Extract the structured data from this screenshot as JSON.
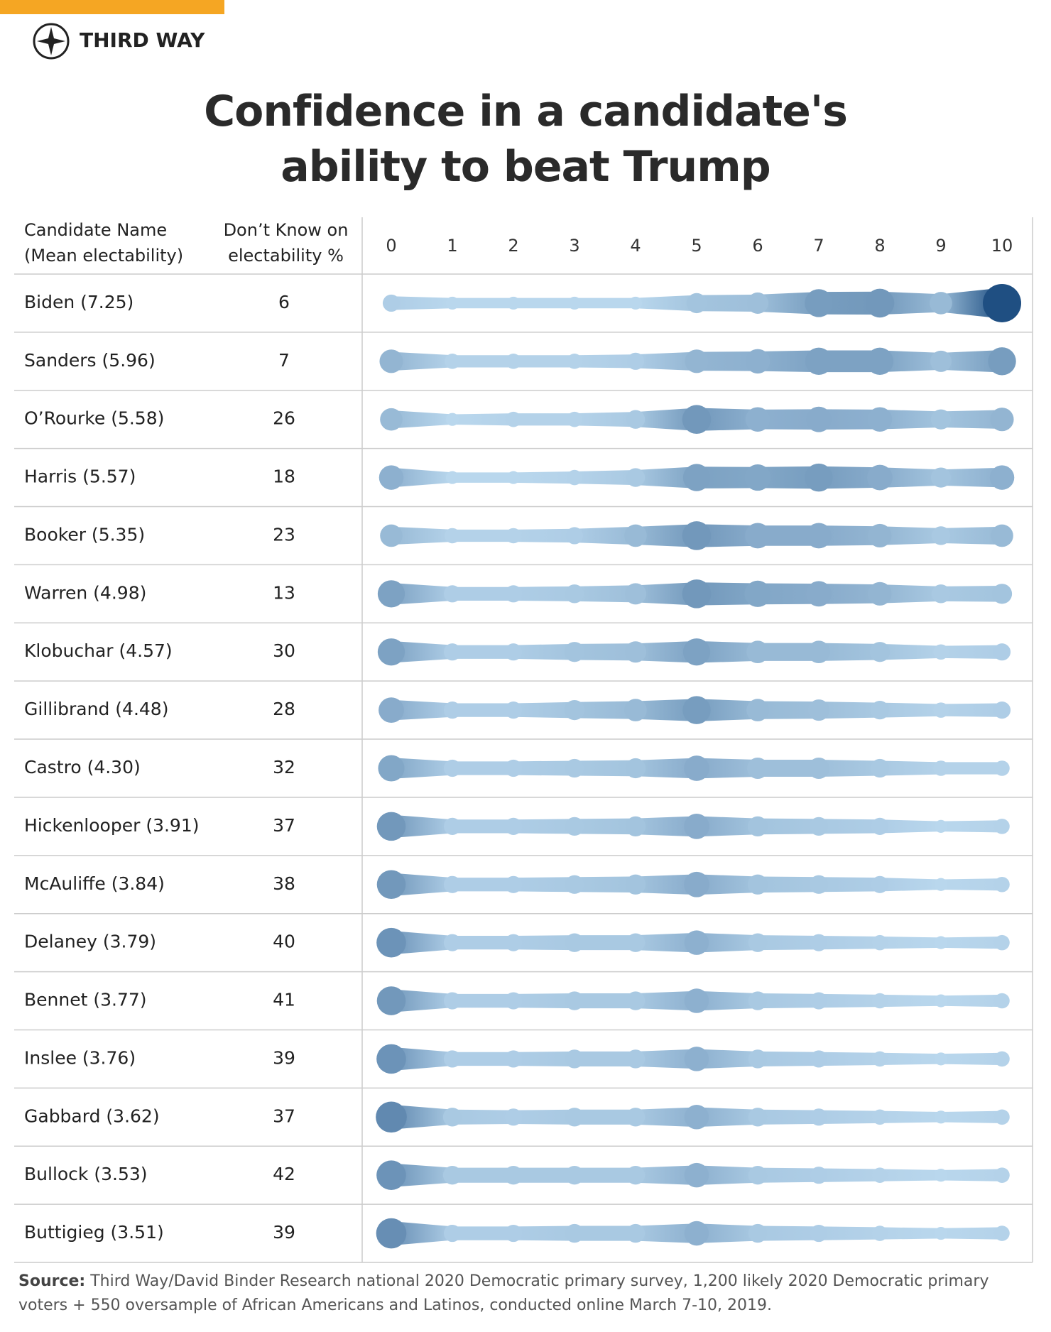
{
  "brand": "THIRD WAY",
  "chart_data": {
    "type": "ribbon",
    "title": "Confidence in a candidate's ability to beat Trump",
    "column_headers": [
      "Candidate Name (Mean electability)",
      "Don’t Know on electability %"
    ],
    "categories": [
      "Biden (7.25)",
      "Sanders (5.96)",
      "O’Rourke (5.58)",
      "Harris (5.57)",
      "Booker (5.35)",
      "Warren (4.98)",
      "Klobuchar (4.57)",
      "Gillibrand (4.48)",
      "Castro (4.30)",
      "Hickenlooper (3.91)",
      "McAuliffe (3.84)",
      "Delaney (3.79)",
      "Bennet (3.77)",
      "Inslee (3.76)",
      "Gabbard (3.62)",
      "Bullock (3.53)",
      "Buttigieg (3.51)"
    ],
    "dont_know": [
      6,
      7,
      26,
      18,
      23,
      13,
      30,
      28,
      32,
      37,
      38,
      40,
      41,
      39,
      37,
      42,
      39
    ],
    "xlim": [
      0,
      10
    ],
    "xticks": [
      0,
      1,
      2,
      3,
      4,
      5,
      6,
      7,
      8,
      9,
      10
    ],
    "distribution": [
      [
        3,
        1,
        1,
        1,
        1,
        5,
        6,
        13,
        14,
        7,
        29
      ],
      [
        8,
        2,
        2,
        2,
        3,
        8,
        9,
        12,
        12,
        6,
        13
      ],
      [
        7,
        1,
        2,
        2,
        4,
        14,
        9,
        10,
        9,
        5,
        8
      ],
      [
        9,
        1,
        1,
        2,
        4,
        12,
        11,
        13,
        10,
        5,
        9
      ],
      [
        7,
        2,
        2,
        3,
        7,
        14,
        10,
        10,
        8,
        4,
        7
      ],
      [
        12,
        3,
        3,
        4,
        6,
        14,
        11,
        10,
        8,
        4,
        5
      ],
      [
        12,
        3,
        3,
        5,
        6,
        12,
        7,
        7,
        5,
        2,
        3
      ],
      [
        10,
        3,
        3,
        5,
        7,
        13,
        7,
        6,
        4,
        2,
        3
      ],
      [
        11,
        3,
        3,
        4,
        5,
        10,
        6,
        6,
        4,
        2,
        2
      ],
      [
        14,
        3,
        3,
        4,
        5,
        10,
        5,
        4,
        3,
        1,
        2
      ],
      [
        14,
        3,
        3,
        4,
        5,
        10,
        5,
        4,
        3,
        1,
        2
      ],
      [
        15,
        3,
        3,
        4,
        4,
        9,
        4,
        3,
        2,
        1,
        2
      ],
      [
        14,
        3,
        3,
        4,
        4,
        9,
        4,
        3,
        2,
        1,
        2
      ],
      [
        15,
        3,
        3,
        4,
        4,
        9,
        4,
        3,
        2,
        1,
        2
      ],
      [
        17,
        4,
        3,
        4,
        4,
        9,
        4,
        3,
        2,
        1,
        2
      ],
      [
        15,
        4,
        4,
        4,
        4,
        9,
        4,
        3,
        2,
        1,
        2
      ],
      [
        16,
        3,
        3,
        4,
        4,
        9,
        4,
        3,
        2,
        1,
        2
      ]
    ],
    "color_scale": [
      "#bfdcf1",
      "#1f4f82"
    ],
    "source_label": "Source:",
    "source": "Third Way/David Binder Research national 2020 Democratic primary survey, 1,200 likely 2020 Democratic primary voters + 550 oversample of African Americans and Latinos, conducted online March 7-10, 2019."
  }
}
